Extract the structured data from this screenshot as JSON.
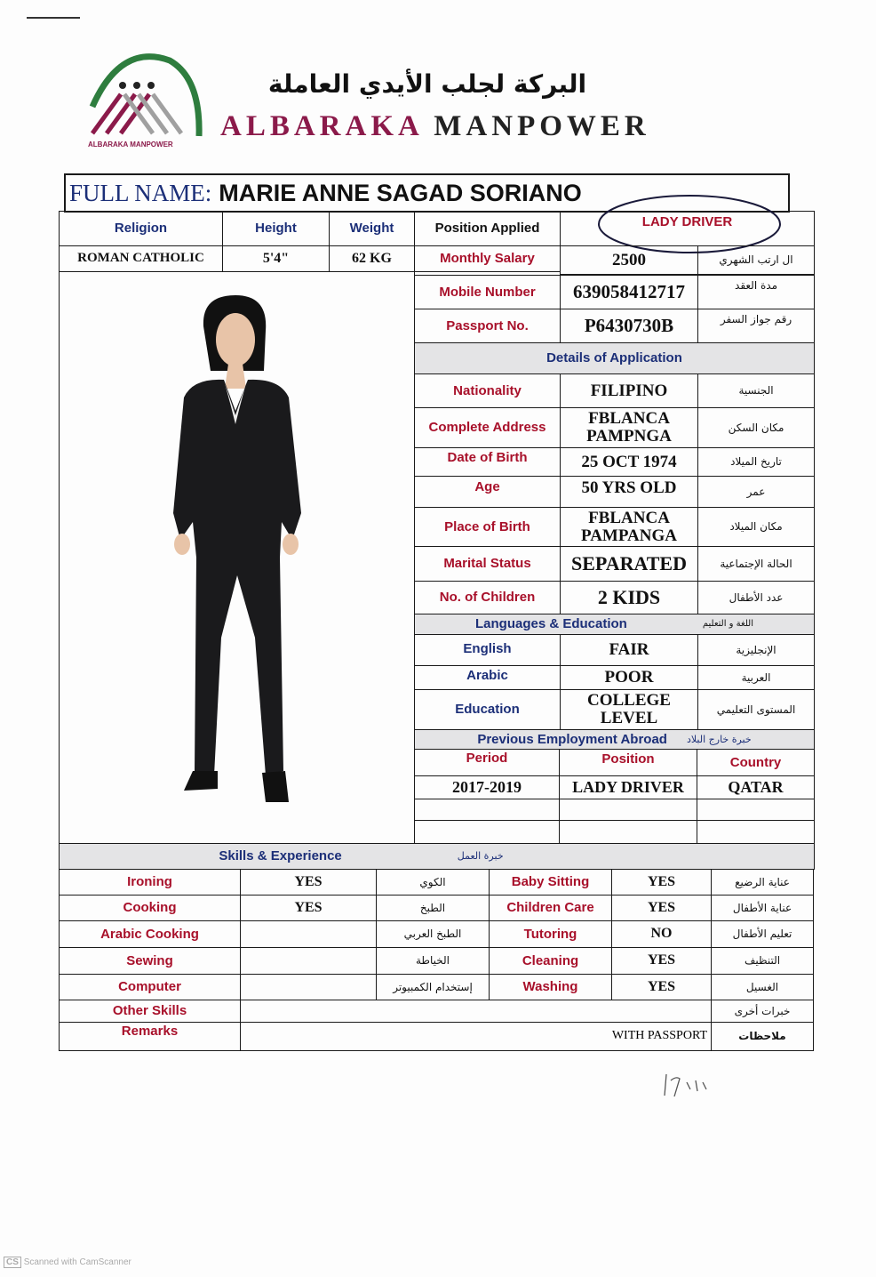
{
  "header": {
    "logo_caption": "ALBARAKA MANPOWER",
    "arabic_name": "البركة لجلب الأيدي العاملة",
    "company_name_part1": "ALBARAKA",
    "company_name_part2": "MANPOWER",
    "colors": {
      "maroon": "#8b1a4a",
      "green": "#2e7d3e",
      "gray": "#9a9a9a"
    }
  },
  "full_name": {
    "label": "FULL NAME:",
    "value": "MARIE ANNE SAGAD SORIANO"
  },
  "top": {
    "religion_label": "Religion",
    "religion": "ROMAN CATHOLIC",
    "height_label": "Height",
    "height": "5'4\"",
    "weight_label": "Weight",
    "weight": "62 KG",
    "position_label": "Position Applied",
    "position": "LADY DRIVER",
    "salary_label": "Monthly Salary",
    "salary": "2500",
    "salary_ar": "ال ارتب الشهري"
  },
  "details": {
    "mobile_label": "Mobile Number",
    "mobile": "639058412717",
    "mobile_ar": "مدة العقد",
    "passport_label": "Passport No.",
    "passport": "P6430730B",
    "passport_ar": "رقم جواز السفر",
    "section_title": "Details of Application",
    "rows": [
      {
        "label": "Nationality",
        "value": "FILIPINO",
        "ar": "الجنسية"
      },
      {
        "label": "Complete Address",
        "value": "FBLANCA PAMPNGA",
        "ar": "مكان السكن"
      },
      {
        "label": "Date of Birth",
        "value": "25 OCT 1974",
        "ar": "تاريخ الميلاد"
      },
      {
        "label": "Age",
        "value": "50 YRS OLD",
        "ar": "عمر"
      },
      {
        "label": "Place of Birth",
        "value": "FBLANCA PAMPANGA",
        "ar": "مكان الميلاد"
      },
      {
        "label": "Marital Status",
        "value": "SEPARATED",
        "ar": "الحالة الإجتماعية"
      },
      {
        "label": "No. of Children",
        "value": "2 KIDS",
        "ar": "عدد الأطفال"
      }
    ]
  },
  "languages": {
    "title": "Languages & Education",
    "title_ar": "اللغة و التعليم",
    "rows": [
      {
        "label": "English",
        "value": "FAIR",
        "ar": "الإنجليزية"
      },
      {
        "label": "Arabic",
        "value": "POOR",
        "ar": "العربية"
      },
      {
        "label": "Education",
        "value": "COLLEGE LEVEL",
        "ar": "المستوى التعليمي"
      }
    ]
  },
  "employment": {
    "title": "Previous Employment Abroad",
    "title_ar": "خبرة خارج البلاد",
    "headers": [
      "Period",
      "Position",
      "Country"
    ],
    "rows": [
      [
        "2017-2019",
        "LADY DRIVER",
        "QATAR"
      ],
      [
        "",
        "",
        ""
      ],
      [
        "",
        "",
        ""
      ]
    ]
  },
  "skills": {
    "title": "Skills & Experience",
    "title_ar": "خبرة العمل",
    "rows": [
      {
        "left": "Ironing",
        "left_val": "YES",
        "left_ar": "الكوي",
        "right": "Baby Sitting",
        "right_val": "YES",
        "right_ar": "عناية الرضيع"
      },
      {
        "left": "Cooking",
        "left_val": "YES",
        "left_ar": "الطبخ",
        "right": "Children Care",
        "right_val": "YES",
        "right_ar": "عناية الأطفال"
      },
      {
        "left": "Arabic Cooking",
        "left_val": "",
        "left_ar": "الطبخ العربي",
        "right": "Tutoring",
        "right_val": "NO",
        "right_ar": "تعليم الأطفال"
      },
      {
        "left": "Sewing",
        "left_val": "",
        "left_ar": "الخياطة",
        "right": "Cleaning",
        "right_val": "YES",
        "right_ar": "التنظيف"
      },
      {
        "left": "Computer",
        "left_val": "",
        "left_ar": "إستخدام الكمبيوتر",
        "right": "Washing",
        "right_val": "YES",
        "right_ar": "الغسيل"
      }
    ],
    "other_label": "Other Skills",
    "other_value": "",
    "other_ar": "خبرات أخرى",
    "remarks_label": "Remarks",
    "remarks_value": "WITH PASSPORT",
    "remarks_ar": "ملاحظات"
  },
  "footer": {
    "watermark": "Scanned with CamScanner",
    "watermark_logo": "CS"
  }
}
